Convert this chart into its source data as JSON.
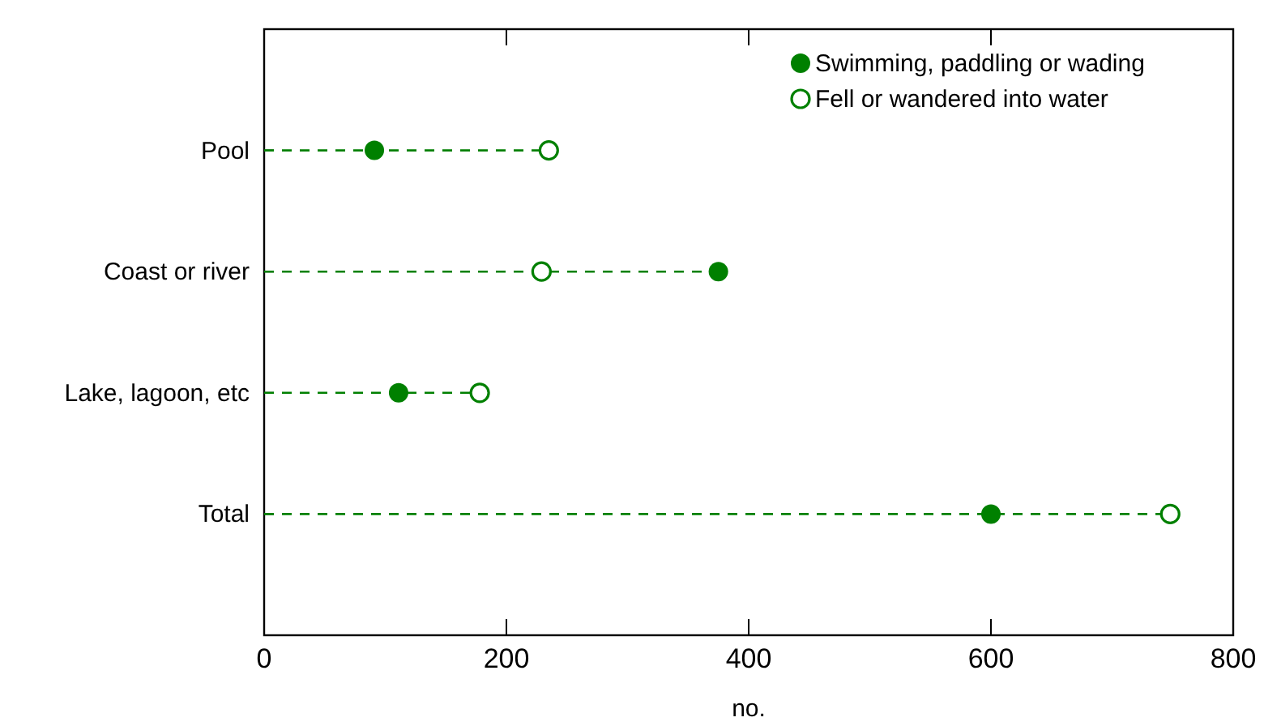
{
  "chart_data": {
    "type": "lollipop",
    "orientation": "horizontal",
    "categories": [
      "Pool",
      "Coast or river",
      "Lake, lagoon, etc",
      "Total"
    ],
    "series": [
      {
        "name": "Swimming, paddling or wading",
        "color": "#008000",
        "values": [
          91,
          375,
          111,
          600
        ]
      },
      {
        "name": "Fell or wandered into water",
        "color": "#008000",
        "values": [
          235,
          229,
          178,
          748
        ]
      }
    ],
    "xlabel": "no.",
    "xlim": [
      0,
      800
    ],
    "xticks": [
      0,
      200,
      400,
      600,
      800
    ],
    "line_style": "dashed",
    "marker": "circle",
    "legend": "top right",
    "grid": false
  }
}
